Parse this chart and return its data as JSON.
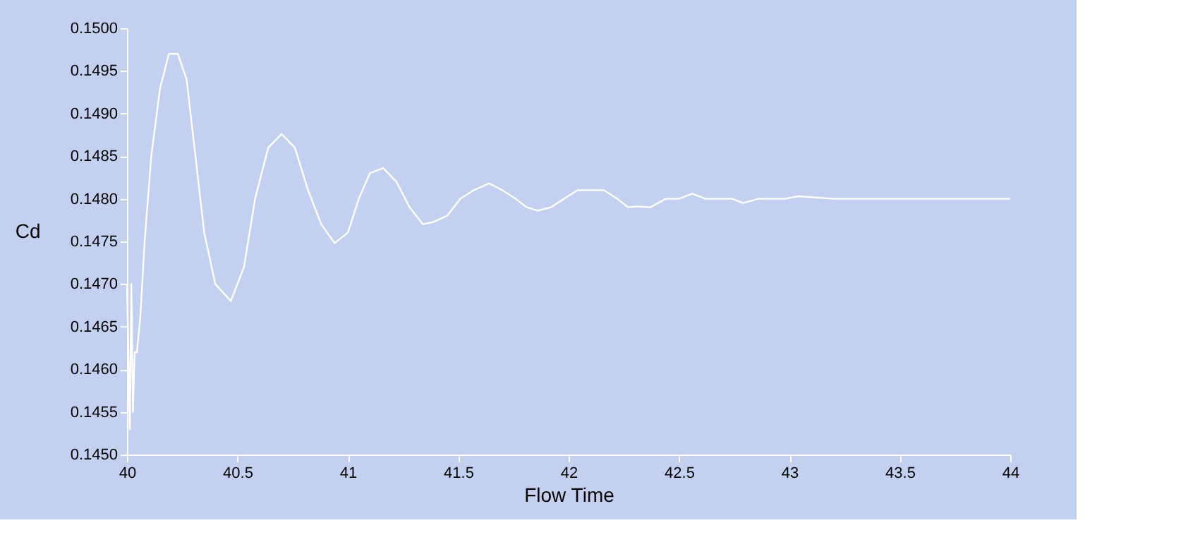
{
  "chart_data": {
    "type": "line",
    "xlabel": "Flow Time",
    "ylabel": "Cd",
    "series": [
      {
        "color": "#ffffff",
        "x": [
          40.0,
          40.008,
          40.013,
          40.02,
          40.027,
          40.035,
          40.045,
          40.06,
          40.08,
          40.11,
          40.15,
          40.19,
          40.23,
          40.27,
          40.31,
          40.35,
          40.4,
          40.47,
          40.53,
          40.58,
          40.64,
          40.7,
          40.76,
          40.82,
          40.88,
          40.94,
          41.0,
          41.05,
          41.1,
          41.16,
          41.22,
          41.28,
          41.34,
          41.39,
          41.45,
          41.51,
          41.57,
          41.64,
          41.7,
          41.76,
          41.81,
          41.86,
          41.92,
          41.98,
          42.04,
          42.1,
          42.16,
          42.22,
          42.27,
          42.31,
          42.37,
          42.44,
          42.5,
          42.56,
          42.62,
          42.68,
          42.74,
          42.79,
          42.86,
          42.92,
          42.98,
          43.04,
          43.2,
          43.4,
          43.6,
          43.8,
          44.0
        ],
        "values": [
          0.147,
          0.146,
          0.1453,
          0.147,
          0.1455,
          0.1462,
          0.1462,
          0.1466,
          0.1475,
          0.1485,
          0.1493,
          0.1497,
          0.1497,
          0.1494,
          0.1485,
          0.1476,
          0.147,
          0.1468,
          0.1472,
          0.148,
          0.1486,
          0.14876,
          0.1486,
          0.1481,
          0.1477,
          0.14748,
          0.1476,
          0.148,
          0.1483,
          0.14836,
          0.1482,
          0.1479,
          0.1477,
          0.14773,
          0.1478,
          0.148,
          0.1481,
          0.14818,
          0.1481,
          0.148,
          0.1479,
          0.14786,
          0.1479,
          0.148,
          0.1481,
          0.1481,
          0.1481,
          0.148,
          0.1479,
          0.14791,
          0.1479,
          0.148,
          0.148,
          0.14806,
          0.148,
          0.148,
          0.148,
          0.14795,
          0.148,
          0.148,
          0.148,
          0.14803,
          0.148,
          0.148,
          0.148,
          0.148,
          0.148
        ]
      }
    ],
    "xlim": [
      40,
      44
    ],
    "xticks": [
      40,
      40.5,
      41,
      41.5,
      42,
      42.5,
      43,
      43.5,
      44
    ],
    "ylim": [
      0.145,
      0.15
    ],
    "yticks": [
      {
        "value": 0.145,
        "label": "0.1450"
      },
      {
        "value": 0.1455,
        "label": "0.1455"
      },
      {
        "value": 0.146,
        "label": "0.1460"
      },
      {
        "value": 0.1465,
        "label": "0.1465"
      },
      {
        "value": 0.147,
        "label": "0.1470"
      },
      {
        "value": 0.1475,
        "label": "0.1475"
      },
      {
        "value": 0.148,
        "label": "0.1480"
      },
      {
        "value": 0.1485,
        "label": "0.1485"
      },
      {
        "value": 0.149,
        "label": "0.1490"
      },
      {
        "value": 0.1495,
        "label": "0.1495"
      },
      {
        "value": 0.15,
        "label": "0.1500"
      }
    ],
    "grid": false,
    "legend": false,
    "marker": "none",
    "line_style": "solid"
  }
}
